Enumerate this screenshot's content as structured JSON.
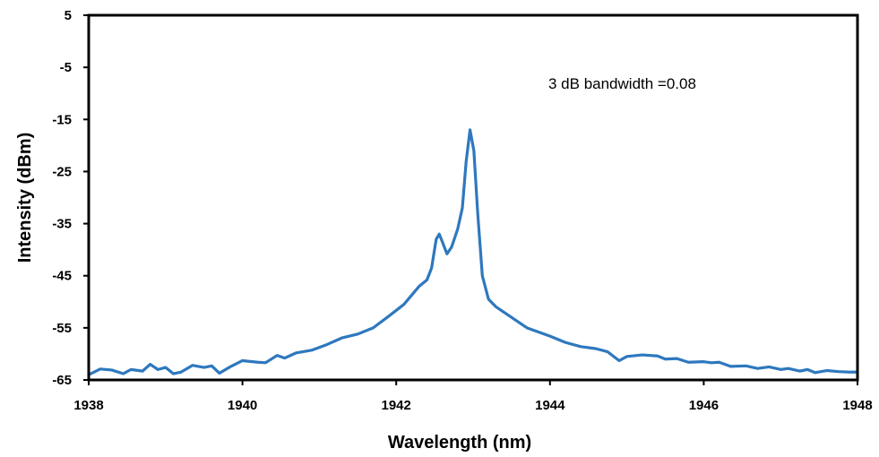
{
  "chart_data": {
    "type": "line",
    "title": "",
    "xlabel": "Wavelength (nm)",
    "ylabel": "Intensity (dBm)",
    "xlim": [
      1938,
      1948
    ],
    "ylim": [
      -65,
      5
    ],
    "x_ticks": [
      "1938",
      "1940",
      "1942",
      "1944",
      "1946",
      "1948"
    ],
    "y_ticks": [
      "5",
      "-5",
      "-15",
      "-25",
      "-35",
      "-45",
      "-55",
      "-65"
    ],
    "annotation": "3 dB bandwidth =0.08",
    "grid": false,
    "legend": "none",
    "colors": {
      "line": "#2E78BE",
      "frame": "#000000"
    },
    "series": [
      {
        "values": [
          [
            1938.0,
            -64.0
          ],
          [
            1938.15,
            -62.9
          ],
          [
            1938.3,
            -63.1
          ],
          [
            1938.45,
            -63.8
          ],
          [
            1938.55,
            -63.0
          ],
          [
            1938.7,
            -63.3
          ],
          [
            1938.8,
            -62.0
          ],
          [
            1938.9,
            -63.0
          ],
          [
            1939.0,
            -62.6
          ],
          [
            1939.1,
            -63.8
          ],
          [
            1939.2,
            -63.5
          ],
          [
            1939.35,
            -62.2
          ],
          [
            1939.5,
            -62.6
          ],
          [
            1939.6,
            -62.3
          ],
          [
            1939.7,
            -63.7
          ],
          [
            1939.85,
            -62.4
          ],
          [
            1940.0,
            -61.3
          ],
          [
            1940.2,
            -61.6
          ],
          [
            1940.3,
            -61.7
          ],
          [
            1940.45,
            -60.3
          ],
          [
            1940.55,
            -60.8
          ],
          [
            1940.7,
            -59.8
          ],
          [
            1940.9,
            -59.3
          ],
          [
            1941.1,
            -58.2
          ],
          [
            1941.3,
            -56.9
          ],
          [
            1941.5,
            -56.2
          ],
          [
            1941.7,
            -55.0
          ],
          [
            1941.9,
            -52.8
          ],
          [
            1942.1,
            -50.5
          ],
          [
            1942.3,
            -47.0
          ],
          [
            1942.4,
            -45.8
          ],
          [
            1942.46,
            -43.5
          ],
          [
            1942.52,
            -38.0
          ],
          [
            1942.56,
            -37.0
          ],
          [
            1942.6,
            -38.5
          ],
          [
            1942.66,
            -40.8
          ],
          [
            1942.72,
            -39.5
          ],
          [
            1942.8,
            -36.0
          ],
          [
            1942.86,
            -32.0
          ],
          [
            1942.91,
            -23.0
          ],
          [
            1942.96,
            -17.0
          ],
          [
            1943.01,
            -21.0
          ],
          [
            1943.06,
            -33.0
          ],
          [
            1943.12,
            -45.0
          ],
          [
            1943.2,
            -49.5
          ],
          [
            1943.3,
            -51.0
          ],
          [
            1943.5,
            -53.0
          ],
          [
            1943.7,
            -55.0
          ],
          [
            1944.0,
            -56.6
          ],
          [
            1944.2,
            -57.8
          ],
          [
            1944.4,
            -58.6
          ],
          [
            1944.6,
            -59.0
          ],
          [
            1944.75,
            -59.6
          ],
          [
            1944.9,
            -61.3
          ],
          [
            1945.0,
            -60.5
          ],
          [
            1945.2,
            -60.2
          ],
          [
            1945.4,
            -60.4
          ],
          [
            1945.5,
            -61.0
          ],
          [
            1945.65,
            -60.9
          ],
          [
            1945.8,
            -61.6
          ],
          [
            1946.0,
            -61.5
          ],
          [
            1946.1,
            -61.7
          ],
          [
            1946.2,
            -61.6
          ],
          [
            1946.35,
            -62.4
          ],
          [
            1946.55,
            -62.3
          ],
          [
            1946.7,
            -62.8
          ],
          [
            1946.85,
            -62.5
          ],
          [
            1947.0,
            -63.0
          ],
          [
            1947.1,
            -62.8
          ],
          [
            1947.25,
            -63.3
          ],
          [
            1947.35,
            -63.0
          ],
          [
            1947.45,
            -63.6
          ],
          [
            1947.6,
            -63.2
          ],
          [
            1947.75,
            -63.4
          ],
          [
            1947.9,
            -63.5
          ],
          [
            1948.0,
            -63.5
          ]
        ]
      }
    ]
  }
}
